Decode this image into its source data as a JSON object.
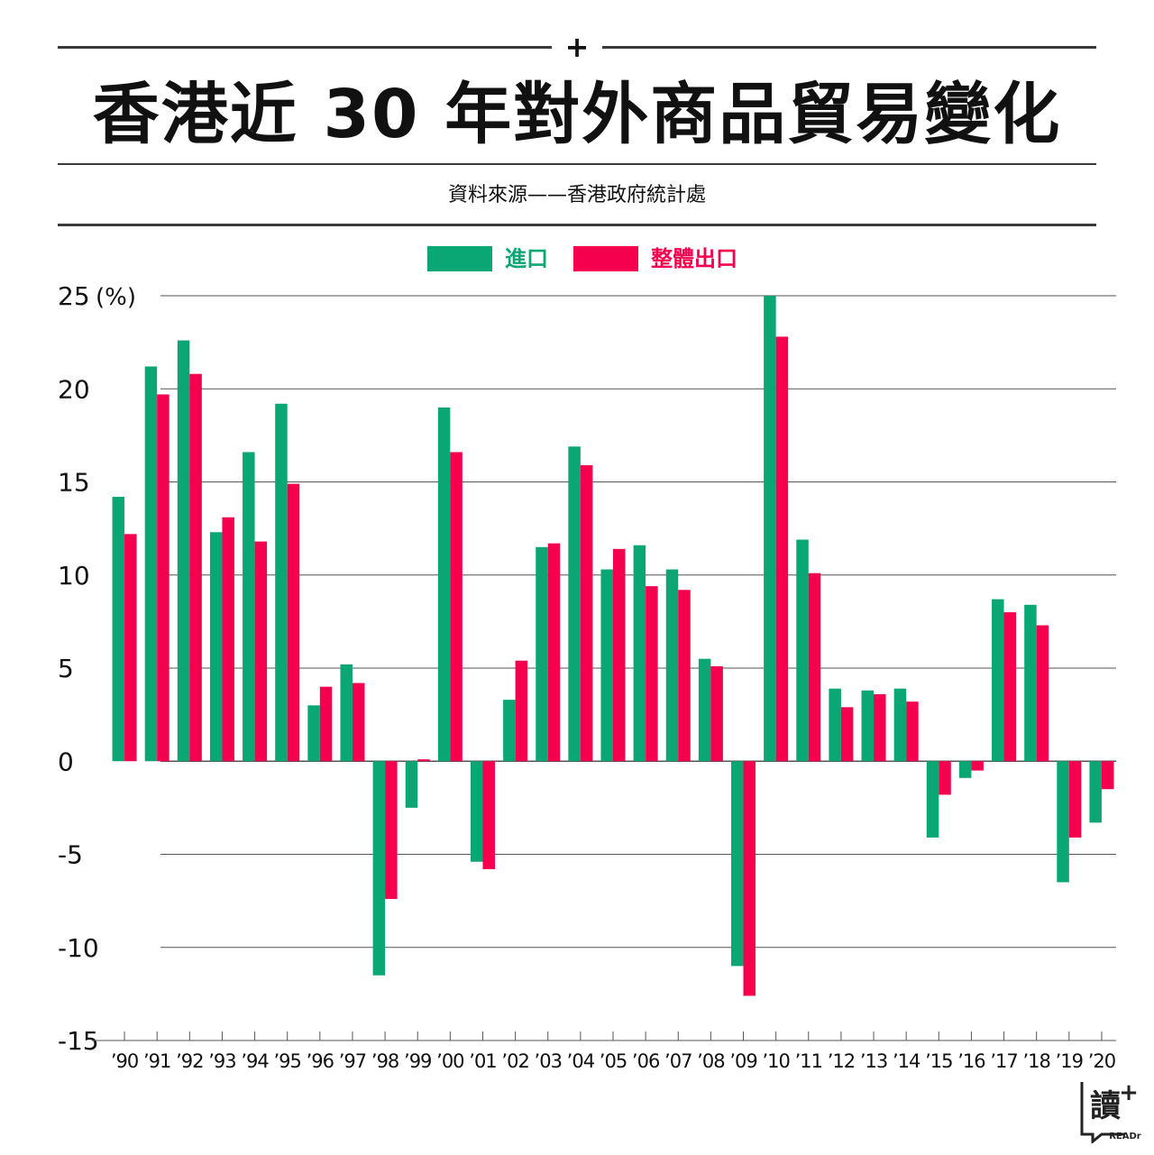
{
  "header": {
    "title": "香港近 30 年對外商品貿易變化",
    "plus": "+",
    "source": "資料來源——香港政府統計處"
  },
  "legend": [
    {
      "label": "進口",
      "color": "#0aa673"
    },
    {
      "label": "整體出口",
      "color": "#f5004f"
    }
  ],
  "logo": {
    "text": "讀",
    "plus": "+",
    "brand": "READr"
  },
  "chart_data": {
    "type": "bar",
    "title": "香港近 30 年對外商品貿易變化",
    "ylabel": "(%)",
    "ylim": [
      -15,
      25
    ],
    "yticks": [
      25,
      20,
      15,
      10,
      5,
      0,
      -5,
      -10,
      -15
    ],
    "grid": true,
    "legend_position": "top-center",
    "categories": [
      "’90",
      "’91",
      "’92",
      "’93",
      "’94",
      "’95",
      "’96",
      "’97",
      "’98",
      "’99",
      "’00",
      "’01",
      "’02",
      "’03",
      "’04",
      "’05",
      "’06",
      "’07",
      "’08",
      "’09",
      "’10",
      "’11",
      "’12",
      "’13",
      "’14",
      "’15",
      "’16",
      "’17",
      "’18",
      "’19",
      "’20"
    ],
    "series": [
      {
        "name": "進口",
        "color": "#0aa673",
        "values": [
          14.2,
          21.2,
          22.6,
          12.3,
          16.6,
          19.2,
          3.0,
          5.2,
          -11.5,
          -2.5,
          19.0,
          -5.4,
          3.3,
          11.5,
          16.9,
          10.3,
          11.6,
          10.3,
          5.5,
          -11.0,
          25.0,
          11.9,
          3.9,
          3.8,
          3.9,
          -4.1,
          -0.9,
          8.7,
          8.4,
          -6.5,
          -3.3
        ]
      },
      {
        "name": "整體出口",
        "color": "#f5004f",
        "values": [
          12.2,
          19.7,
          20.8,
          13.1,
          11.8,
          14.9,
          4.0,
          4.2,
          -7.4,
          0.1,
          16.6,
          -5.8,
          5.4,
          11.7,
          15.9,
          11.4,
          9.4,
          9.2,
          5.1,
          -12.6,
          22.8,
          10.1,
          2.9,
          3.6,
          3.2,
          -1.8,
          -0.5,
          8.0,
          7.3,
          -4.1,
          -1.5
        ]
      }
    ]
  }
}
